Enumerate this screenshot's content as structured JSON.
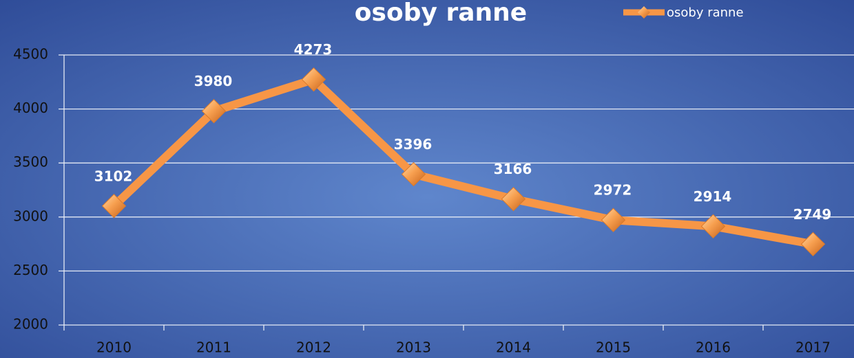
{
  "chart_data": {
    "type": "line",
    "title": "osoby ranne",
    "categories": [
      "2010",
      "2011",
      "2012",
      "2013",
      "2014",
      "2015",
      "2016",
      "2017"
    ],
    "series": [
      {
        "name": "osoby ranne",
        "color": "#f79646",
        "values": [
          3102,
          3980,
          4273,
          3396,
          3166,
          2972,
          2914,
          2749
        ]
      }
    ],
    "ylim": [
      2000,
      4500
    ],
    "yticks": [
      2000,
      2500,
      3000,
      3500,
      4000,
      4500
    ],
    "grid": true,
    "legend": "top-right",
    "data_labels": true
  }
}
